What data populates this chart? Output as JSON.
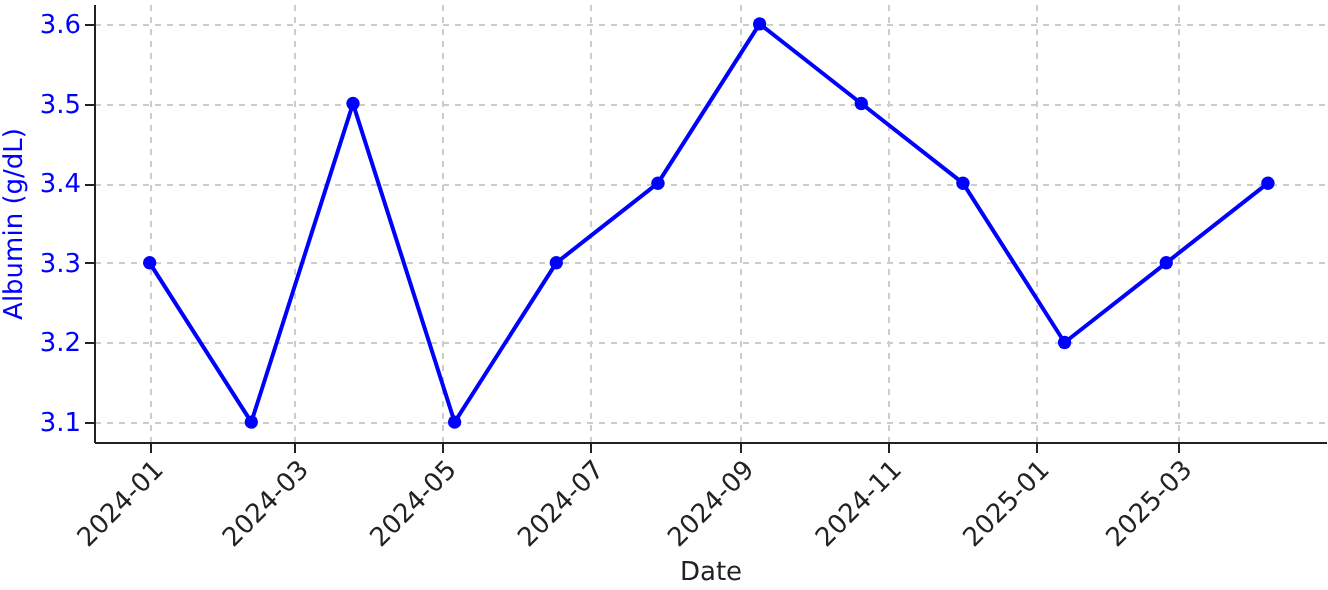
{
  "chart_data": {
    "type": "line",
    "xlabel": "Date",
    "ylabel": "Albumin (g/dL)",
    "x": [
      "2024-01-01",
      "2024-02-12",
      "2024-03-25",
      "2024-05-06",
      "2024-06-17",
      "2024-07-29",
      "2024-09-09",
      "2024-10-21",
      "2024-12-02",
      "2025-01-13",
      "2025-02-24",
      "2025-04-07"
    ],
    "series": [
      {
        "color": "#0000ff",
        "values": [
          3.3,
          3.1,
          3.5,
          3.1,
          3.3,
          3.4,
          3.6,
          3.5,
          3.4,
          3.2,
          3.3,
          3.4
        ]
      }
    ],
    "xlim": [
      "2023-12-09",
      "2025-05-01"
    ],
    "xticks": [
      {
        "value": "2024-01",
        "label": "2024-01"
      },
      {
        "value": "2024-03",
        "label": "2024-03"
      },
      {
        "value": "2024-05",
        "label": "2024-05"
      },
      {
        "value": "2024-07",
        "label": "2024-07"
      },
      {
        "value": "2024-09",
        "label": "2024-09"
      },
      {
        "value": "2024-11",
        "label": "2024-11"
      },
      {
        "value": "2025-01",
        "label": "2025-01"
      },
      {
        "value": "2025-03",
        "label": "2025-03"
      }
    ],
    "ylim": [
      3.075,
      3.625
    ],
    "yticks": [
      3.1,
      3.2,
      3.3,
      3.4,
      3.5,
      3.6
    ],
    "grid": true,
    "marker": "circle",
    "line_style": "solid"
  }
}
